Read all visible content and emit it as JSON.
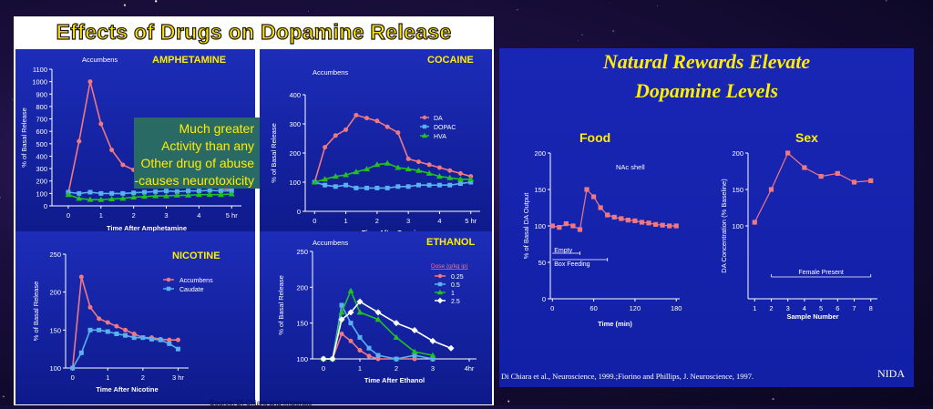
{
  "left_title": "Effects of Drugs on Dopamine Release",
  "right_title_line1": "Natural Rewards Elevate",
  "right_title_line2": "Dopamine Levels",
  "source_left": "Source: Di Chiara and Imperato",
  "source_right": "Di Chiara et al., Neuroscience, 1999.;Fiorino and Phillips, J. Neuroscience, 1997.",
  "nida": "NIDA",
  "callout": [
    "Much greater",
    "Activity than any",
    "Other drug of abuse",
    "-causes neurotoxicity"
  ],
  "colors": {
    "yellow": "#ffee00",
    "pink": "#f07880",
    "lightblue": "#5ab0f0",
    "green": "#22c020",
    "white": "#ffffff"
  },
  "chart_data": [
    {
      "type": "line",
      "id": "amphetamine",
      "title": "AMPHETAMINE",
      "subtitle": "Accumbens",
      "xlabel": "Time After Amphetamine",
      "ylabel": "% of Basal Release",
      "xlim": [
        -0.5,
        5.3
      ],
      "ylim": [
        0,
        1100
      ],
      "xticks": [
        "0",
        "1",
        "2",
        "3",
        "4",
        "5 hr"
      ],
      "xtick_vals": [
        0,
        1,
        2,
        3,
        4,
        5
      ],
      "yticks": [
        "0",
        "100",
        "200",
        "300",
        "400",
        "500",
        "600",
        "700",
        "800",
        "900",
        "1000",
        "1100"
      ],
      "ytick_vals": [
        0,
        100,
        200,
        300,
        400,
        500,
        600,
        700,
        800,
        900,
        1000,
        1100
      ],
      "series": [
        {
          "color": "#f07880",
          "marker": "circle",
          "x": [
            0,
            0.33,
            0.67,
            1,
            1.33,
            1.67,
            2,
            2.33,
            2.67,
            3,
            3.33,
            3.67,
            4,
            4.33,
            4.67,
            5
          ],
          "y": [
            100,
            520,
            1000,
            660,
            450,
            330,
            290,
            260,
            240,
            220,
            200,
            190,
            170,
            160,
            140,
            130
          ]
        },
        {
          "color": "#5ab0f0",
          "marker": "square",
          "x": [
            0,
            0.33,
            0.67,
            1,
            1.33,
            1.67,
            2,
            2.33,
            2.67,
            3,
            3.33,
            3.67,
            4,
            4.33,
            4.67,
            5
          ],
          "y": [
            110,
            100,
            110,
            100,
            100,
            100,
            105,
            110,
            115,
            120,
            115,
            120,
            120,
            125,
            120,
            120
          ]
        },
        {
          "color": "#22c020",
          "marker": "triangle",
          "x": [
            0,
            0.33,
            0.67,
            1,
            1.33,
            1.67,
            2,
            2.33,
            2.67,
            3,
            3.33,
            3.67,
            4,
            4.33,
            4.67,
            5
          ],
          "y": [
            90,
            60,
            50,
            50,
            55,
            60,
            70,
            75,
            80,
            80,
            85,
            85,
            90,
            90,
            90,
            95
          ]
        }
      ]
    },
    {
      "type": "line",
      "id": "cocaine",
      "title": "COCAINE",
      "subtitle": "Accumbens",
      "xlabel": "Time After Cocaine",
      "ylabel": "% of Basal Release",
      "xlim": [
        -0.3,
        5.3
      ],
      "ylim": [
        0,
        400
      ],
      "xticks": [
        "0",
        "1",
        "2",
        "3",
        "4",
        "5 hr"
      ],
      "xtick_vals": [
        0,
        1,
        2,
        3,
        4,
        5
      ],
      "yticks": [
        "0",
        "100",
        "200",
        "300",
        "400"
      ],
      "ytick_vals": [
        0,
        100,
        200,
        300,
        400
      ],
      "legend": [
        "DA",
        "DOPAC",
        "HVA"
      ],
      "series": [
        {
          "name": "DA",
          "color": "#f07880",
          "marker": "circle",
          "x": [
            0,
            0.33,
            0.67,
            1,
            1.33,
            1.67,
            2,
            2.33,
            2.67,
            3,
            3.33,
            3.67,
            4,
            4.33,
            4.67,
            5
          ],
          "y": [
            100,
            220,
            260,
            280,
            330,
            320,
            310,
            290,
            270,
            180,
            170,
            160,
            150,
            140,
            130,
            120
          ]
        },
        {
          "name": "DOPAC",
          "color": "#5ab0f0",
          "marker": "square",
          "x": [
            0,
            0.33,
            0.67,
            1,
            1.33,
            1.67,
            2,
            2.33,
            2.67,
            3,
            3.33,
            3.67,
            4,
            4.33,
            4.67,
            5
          ],
          "y": [
            100,
            90,
            85,
            90,
            80,
            80,
            80,
            80,
            85,
            85,
            90,
            90,
            90,
            90,
            95,
            100
          ]
        },
        {
          "name": "HVA",
          "color": "#22c020",
          "marker": "triangle",
          "x": [
            0,
            0.33,
            0.67,
            1,
            1.33,
            1.67,
            2,
            2.33,
            2.67,
            3,
            3.33,
            3.67,
            4,
            4.33,
            4.67,
            5
          ],
          "y": [
            100,
            110,
            120,
            125,
            135,
            145,
            160,
            165,
            150,
            145,
            140,
            130,
            120,
            115,
            110,
            110
          ]
        }
      ]
    },
    {
      "type": "line",
      "id": "nicotine",
      "title": "NICOTINE",
      "xlabel": "Time After Nicotine",
      "ylabel": "% of Basal Release",
      "xlim": [
        -0.2,
        3.3
      ],
      "ylim": [
        100,
        250
      ],
      "xticks": [
        "0",
        "1",
        "2",
        "3 hr"
      ],
      "xtick_vals": [
        0,
        1,
        2,
        3
      ],
      "yticks": [
        "100",
        "150",
        "200",
        "250"
      ],
      "ytick_vals": [
        100,
        150,
        200,
        250
      ],
      "legend": [
        "Accumbens",
        "Caudate"
      ],
      "series": [
        {
          "name": "Accumbens",
          "color": "#f07880",
          "marker": "circle",
          "x": [
            0,
            0.25,
            0.5,
            0.75,
            1,
            1.25,
            1.5,
            1.75,
            2,
            2.25,
            2.5,
            2.75,
            3
          ],
          "y": [
            100,
            220,
            180,
            165,
            160,
            155,
            150,
            145,
            140,
            140,
            138,
            137,
            137
          ]
        },
        {
          "name": "Caudate",
          "color": "#5ab0f0",
          "marker": "square",
          "x": [
            0,
            0.25,
            0.5,
            0.75,
            1,
            1.25,
            1.5,
            1.75,
            2,
            2.25,
            2.5,
            2.75,
            3
          ],
          "y": [
            100,
            120,
            150,
            150,
            148,
            145,
            143,
            140,
            140,
            138,
            137,
            132,
            125
          ]
        }
      ]
    },
    {
      "type": "line",
      "id": "ethanol",
      "title": "ETHANOL",
      "subtitle": "Accumbens",
      "xlabel": "Time After Ethanol",
      "ylabel": "% of Basal Release",
      "xlim": [
        -0.3,
        4.2
      ],
      "ylim": [
        100,
        250
      ],
      "xticks": [
        "0",
        "1",
        "2",
        "3",
        "4hr"
      ],
      "xtick_vals": [
        0,
        1,
        2,
        3,
        4
      ],
      "yticks": [
        "100",
        "150",
        "200",
        "250"
      ],
      "ytick_vals": [
        100,
        150,
        200,
        250
      ],
      "legend_title": "Dose (g/kg ip)",
      "legend": [
        "0.25",
        "0.5",
        "1",
        "2.5"
      ],
      "series": [
        {
          "name": "0.25",
          "color": "#f07880",
          "marker": "circle",
          "x": [
            0,
            0.25,
            0.5,
            0.75,
            1,
            1.25,
            1.5,
            2,
            2.5
          ],
          "y": [
            100,
            100,
            135,
            125,
            112,
            104,
            100,
            100,
            100
          ]
        },
        {
          "name": "0.5",
          "color": "#5ab0f0",
          "marker": "square",
          "x": [
            0,
            0.25,
            0.5,
            0.75,
            1,
            1.25,
            1.5,
            2,
            2.5,
            3
          ],
          "y": [
            100,
            100,
            175,
            150,
            130,
            115,
            105,
            100,
            105,
            100
          ]
        },
        {
          "name": "1",
          "color": "#22c020",
          "marker": "triangle",
          "x": [
            0,
            0.25,
            0.5,
            0.75,
            1,
            1.5,
            2,
            2.5,
            3
          ],
          "y": [
            100,
            100,
            165,
            195,
            165,
            155,
            130,
            110,
            105
          ]
        },
        {
          "name": "2.5",
          "color": "#ffffff",
          "marker": "diamond",
          "x": [
            0,
            0.25,
            0.5,
            0.75,
            1,
            1.5,
            2,
            2.5,
            3,
            3.5
          ],
          "y": [
            100,
            100,
            155,
            165,
            180,
            165,
            150,
            140,
            125,
            115
          ]
        }
      ]
    },
    {
      "type": "line",
      "id": "food",
      "title": "Food",
      "annotation": "NAc shell",
      "xlabel": "Time (min)",
      "ylabel": "% of Basal DA Output",
      "xlim": [
        -3,
        185
      ],
      "ylim": [
        0,
        200
      ],
      "xticks": [
        "0",
        "60",
        "120",
        "180"
      ],
      "xtick_vals": [
        0,
        60,
        120,
        180
      ],
      "yticks": [
        "0",
        "50",
        "100",
        "150",
        "200"
      ],
      "ytick_vals": [
        0,
        50,
        100,
        150,
        200
      ],
      "bars": [
        {
          "label": "Empty",
          "x": [
            0,
            40
          ]
        },
        {
          "label": "Box Feeding",
          "x": [
            0,
            80
          ]
        }
      ],
      "series": [
        {
          "color": "#f07880",
          "marker": "square",
          "x": [
            0,
            10,
            20,
            30,
            40,
            50,
            60,
            70,
            80,
            90,
            100,
            110,
            120,
            130,
            140,
            150,
            160,
            170,
            180
          ],
          "y": [
            100,
            98,
            103,
            100,
            95,
            150,
            140,
            125,
            115,
            112,
            110,
            108,
            107,
            105,
            104,
            102,
            101,
            100,
            100
          ]
        }
      ]
    },
    {
      "type": "line",
      "id": "sex",
      "title": "Sex",
      "bar_label": "Female Present",
      "xlabel": "Sample Number",
      "ylabel": "DA Concentration (% Baseline)",
      "xlim": [
        0.6,
        8.4
      ],
      "ylim": [
        0,
        200
      ],
      "xticks": [
        "1",
        "2",
        "3",
        "4",
        "5",
        "6",
        "7",
        "8"
      ],
      "xtick_vals": [
        1,
        2,
        3,
        4,
        5,
        6,
        7,
        8
      ],
      "yticks": [
        "100",
        "150",
        "200"
      ],
      "ytick_vals": [
        100,
        150,
        200
      ],
      "series": [
        {
          "color": "#f07880",
          "marker": "square",
          "x": [
            1,
            2,
            3,
            4,
            5,
            6,
            7,
            8
          ],
          "y": [
            105,
            150,
            200,
            180,
            168,
            172,
            160,
            162
          ]
        }
      ]
    }
  ]
}
